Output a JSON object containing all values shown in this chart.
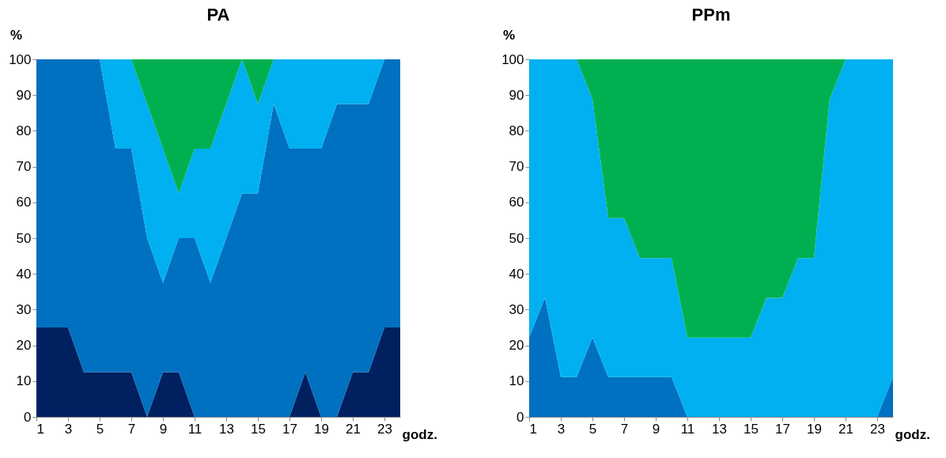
{
  "chart_data": [
    {
      "type": "area",
      "title": "PA",
      "ylabel": "%",
      "xlabel": "godz.",
      "stacked": true,
      "legend": false,
      "grid": false,
      "x": [
        1,
        2,
        3,
        4,
        5,
        6,
        7,
        8,
        9,
        10,
        11,
        12,
        13,
        14,
        15,
        16,
        17,
        18,
        19,
        20,
        21,
        22,
        23,
        24
      ],
      "xlim": [
        1,
        24
      ],
      "xticks": [
        1,
        3,
        5,
        7,
        9,
        11,
        13,
        15,
        17,
        19,
        21,
        23
      ],
      "ylim": [
        0,
        100
      ],
      "yticks": [
        0,
        10,
        20,
        30,
        40,
        50,
        60,
        70,
        80,
        90,
        100
      ],
      "series": [
        {
          "color": "#002060",
          "values": [
            25,
            25,
            25,
            12.5,
            12.5,
            12.5,
            12.5,
            0,
            12.5,
            12.5,
            0,
            0,
            0,
            0,
            0,
            0,
            0,
            12.5,
            0,
            0,
            12.5,
            12.5,
            25,
            25
          ]
        },
        {
          "color": "#0070c0",
          "values": [
            75,
            75,
            75,
            87.5,
            87.5,
            62.5,
            62.5,
            50,
            25,
            37.5,
            50,
            37.5,
            50,
            62.5,
            62.5,
            87.5,
            75,
            62.5,
            75,
            87.5,
            75,
            75,
            75,
            75
          ]
        },
        {
          "color": "#00b0f0",
          "values": [
            0,
            0,
            0,
            0,
            0,
            25,
            25,
            37.5,
            37.5,
            12.5,
            25,
            37.5,
            37.5,
            37.5,
            25,
            12.5,
            25,
            25,
            25,
            12.5,
            12.5,
            12.5,
            0,
            0
          ]
        },
        {
          "color": "#00b050",
          "values": [
            0,
            0,
            0,
            0,
            0,
            0,
            0,
            12.5,
            25,
            37.5,
            25,
            25,
            12.5,
            0,
            12.5,
            0,
            0,
            0,
            0,
            0,
            0,
            0,
            0,
            0
          ]
        }
      ]
    },
    {
      "type": "area",
      "title": "PPm",
      "ylabel": "%",
      "xlabel": "godz.",
      "stacked": true,
      "legend": false,
      "grid": false,
      "x": [
        1,
        2,
        3,
        4,
        5,
        6,
        7,
        8,
        9,
        10,
        11,
        12,
        13,
        14,
        15,
        16,
        17,
        18,
        19,
        20,
        21,
        22,
        23,
        24
      ],
      "xlim": [
        1,
        24
      ],
      "xticks": [
        1,
        3,
        5,
        7,
        9,
        11,
        13,
        15,
        17,
        19,
        21,
        23
      ],
      "ylim": [
        0,
        100
      ],
      "yticks": [
        0,
        10,
        20,
        30,
        40,
        50,
        60,
        70,
        80,
        90,
        100
      ],
      "series": [
        {
          "color": "#0070c0",
          "values": [
            22.2,
            33.3,
            11.1,
            11.1,
            22.2,
            11.1,
            11.1,
            11.1,
            11.1,
            11.1,
            0,
            0,
            0,
            0,
            0,
            0,
            0,
            0,
            0,
            0,
            0,
            0,
            0,
            11.1
          ]
        },
        {
          "color": "#00b0f0",
          "values": [
            77.8,
            66.7,
            88.9,
            88.9,
            66.7,
            44.5,
            44.5,
            33.3,
            33.3,
            33.3,
            22.2,
            22.2,
            22.2,
            22.2,
            22.2,
            33.3,
            33.3,
            44.4,
            44.4,
            88.9,
            100,
            100,
            100,
            88.9
          ]
        },
        {
          "color": "#00b050",
          "values": [
            0,
            0,
            0,
            0,
            11.1,
            44.4,
            44.4,
            55.6,
            55.6,
            55.6,
            77.8,
            77.8,
            77.8,
            77.8,
            77.8,
            66.7,
            66.7,
            55.6,
            55.6,
            11.1,
            0,
            0,
            0,
            0
          ]
        }
      ]
    }
  ]
}
